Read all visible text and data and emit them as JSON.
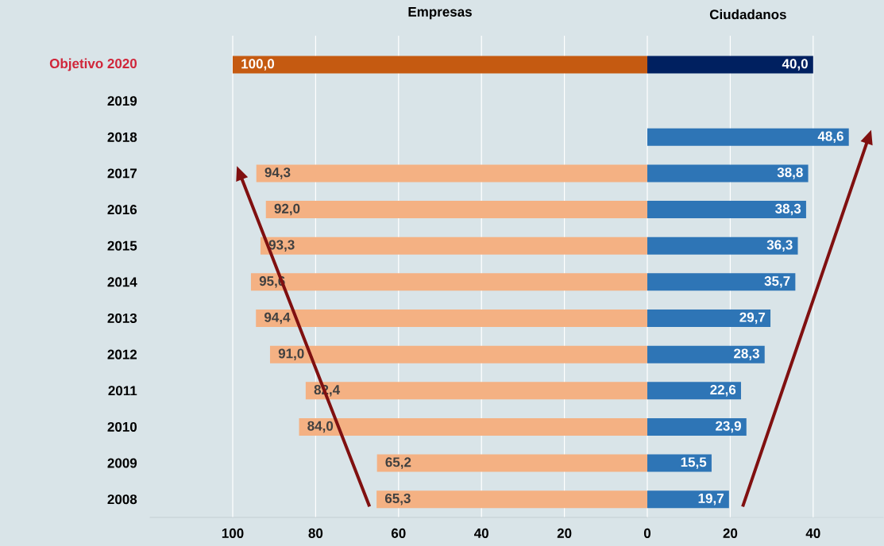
{
  "chart_data": [
    {
      "type": "bar",
      "orientation": "horizontal",
      "grid": "x",
      "categories": [
        "Objetivo 2020",
        "2019",
        "2018",
        "2017",
        "2016",
        "2015",
        "2014",
        "2013",
        "2012",
        "2011",
        "2010",
        "2009",
        "2008"
      ],
      "xlim": [
        120,
        0
      ],
      "xticks": [
        100,
        80,
        60,
        40,
        20,
        0
      ],
      "series": [
        {
          "name": "Empresas",
          "color": "#f4b183",
          "colors": [
            "#c55a11",
            null,
            null,
            null,
            null,
            null,
            null,
            null,
            null,
            null,
            null,
            null,
            null
          ],
          "values": [
            100.0,
            null,
            null,
            94.3,
            92.0,
            93.3,
            95.6,
            94.4,
            91.0,
            82.4,
            84.0,
            65.2,
            65.3
          ],
          "value_labels": [
            "100,0",
            null,
            null,
            "94,3",
            "92,0",
            "93,3",
            "95,6",
            "94,4",
            "91,0",
            "82,4",
            "84,0",
            "65,2",
            "65,3"
          ]
        }
      ]
    },
    {
      "type": "bar",
      "orientation": "horizontal",
      "grid": "x",
      "tick_labels": "x",
      "categories": [
        null,
        null,
        null,
        null,
        null,
        null,
        null,
        null,
        null,
        null,
        null,
        null,
        null
      ],
      "xlim": [
        0,
        57
      ],
      "xticks": [
        20,
        40
      ],
      "series": [
        {
          "name": "Ciudadanos",
          "color": "#2e75b6",
          "colors": [
            "#002060",
            null,
            null,
            null,
            null,
            null,
            null,
            null,
            null,
            null,
            null,
            null,
            null
          ],
          "values": [
            40.0,
            null,
            48.6,
            38.8,
            38.3,
            36.3,
            35.7,
            29.7,
            28.3,
            22.6,
            23.9,
            15.5,
            19.7
          ],
          "value_labels": [
            "40,0",
            null,
            "48,6",
            "38,8",
            "38,3",
            "36,3",
            "35,7",
            "29,7",
            "28,3",
            "22,6",
            "23,9",
            "15,5",
            "19,7"
          ]
        }
      ]
    }
  ]
}
